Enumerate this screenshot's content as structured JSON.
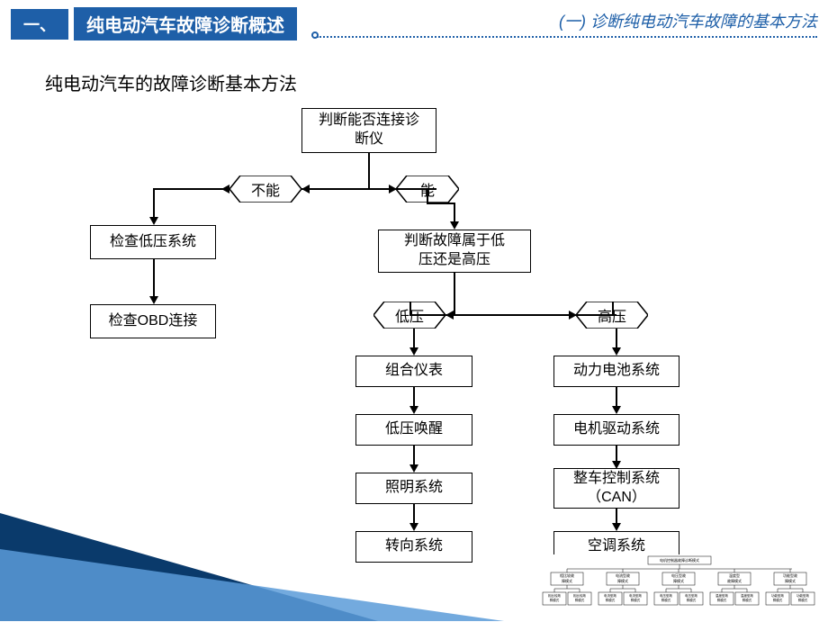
{
  "header": {
    "badge": "一、",
    "title": "纯电动汽车故障诊断概述",
    "right": "(一) 诊断纯电动汽车故障的基本方法"
  },
  "subtitle": "纯电动汽车的故障诊断基本方法",
  "flow": {
    "root": "判断能否连接诊\n断仪",
    "dec_cannot": "不能",
    "dec_can": "能",
    "check_lv": "检查低压系统",
    "lv_or_hv": "判断故障属于低\n压还是高压",
    "obd": "检查OBD连接",
    "dec_lv": "低压",
    "dec_hv": "高压",
    "panel": "组合仪表",
    "battery": "动力电池系统",
    "wake": "低压唤醒",
    "motor": "电机驱动系统",
    "lighting": "照明系统",
    "can": "整车控制系统\n（CAN）",
    "steering": "转向系统",
    "ac": "空调系统"
  },
  "colors": {
    "accent": "#1e5fa8",
    "tri_dark": "#0a3a6b",
    "tri_light": "#5a9bd8",
    "border": "#000000",
    "bg": "#ffffff"
  },
  "thumbnail": {
    "root": "电机控制器故障诊断模式",
    "groups": [
      {
        "title": "相比较故\n障模式",
        "children": [
          "相比较故\n障模式",
          "相比较故\n障模式"
        ]
      },
      {
        "title": "电流型故\n障模式",
        "children": [
          "电流型故\n障模式",
          "电流型故\n障模式"
        ]
      },
      {
        "title": "电压型故\n障模式",
        "children": [
          "电压型故\n障模式",
          "电压型故\n障模式"
        ]
      },
      {
        "title": "温度型\n故障模式",
        "children": [
          "温度型故\n障模式",
          "温度型故\n障模式"
        ]
      },
      {
        "title": "功能型故\n障模式",
        "children": [
          "功能型故\n障模式",
          "功能型故\n障模式"
        ]
      }
    ]
  }
}
